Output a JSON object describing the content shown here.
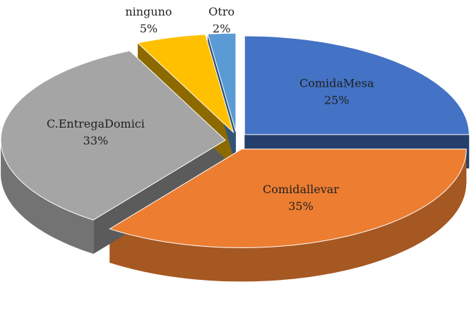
{
  "chart_data": {
    "type": "pie",
    "categories": [
      "ComidaMesa",
      "Comidallevar",
      "C.EntregaDomici",
      "ninguno",
      "Otro"
    ],
    "values": [
      25,
      35,
      33,
      5,
      2
    ],
    "value_labels": [
      "25%",
      "35%",
      "33%",
      "5%",
      "2%"
    ],
    "colors": [
      "#4472c4",
      "#ed7d31",
      "#a5a5a5",
      "#ffc000",
      "#5b9bd5"
    ]
  }
}
